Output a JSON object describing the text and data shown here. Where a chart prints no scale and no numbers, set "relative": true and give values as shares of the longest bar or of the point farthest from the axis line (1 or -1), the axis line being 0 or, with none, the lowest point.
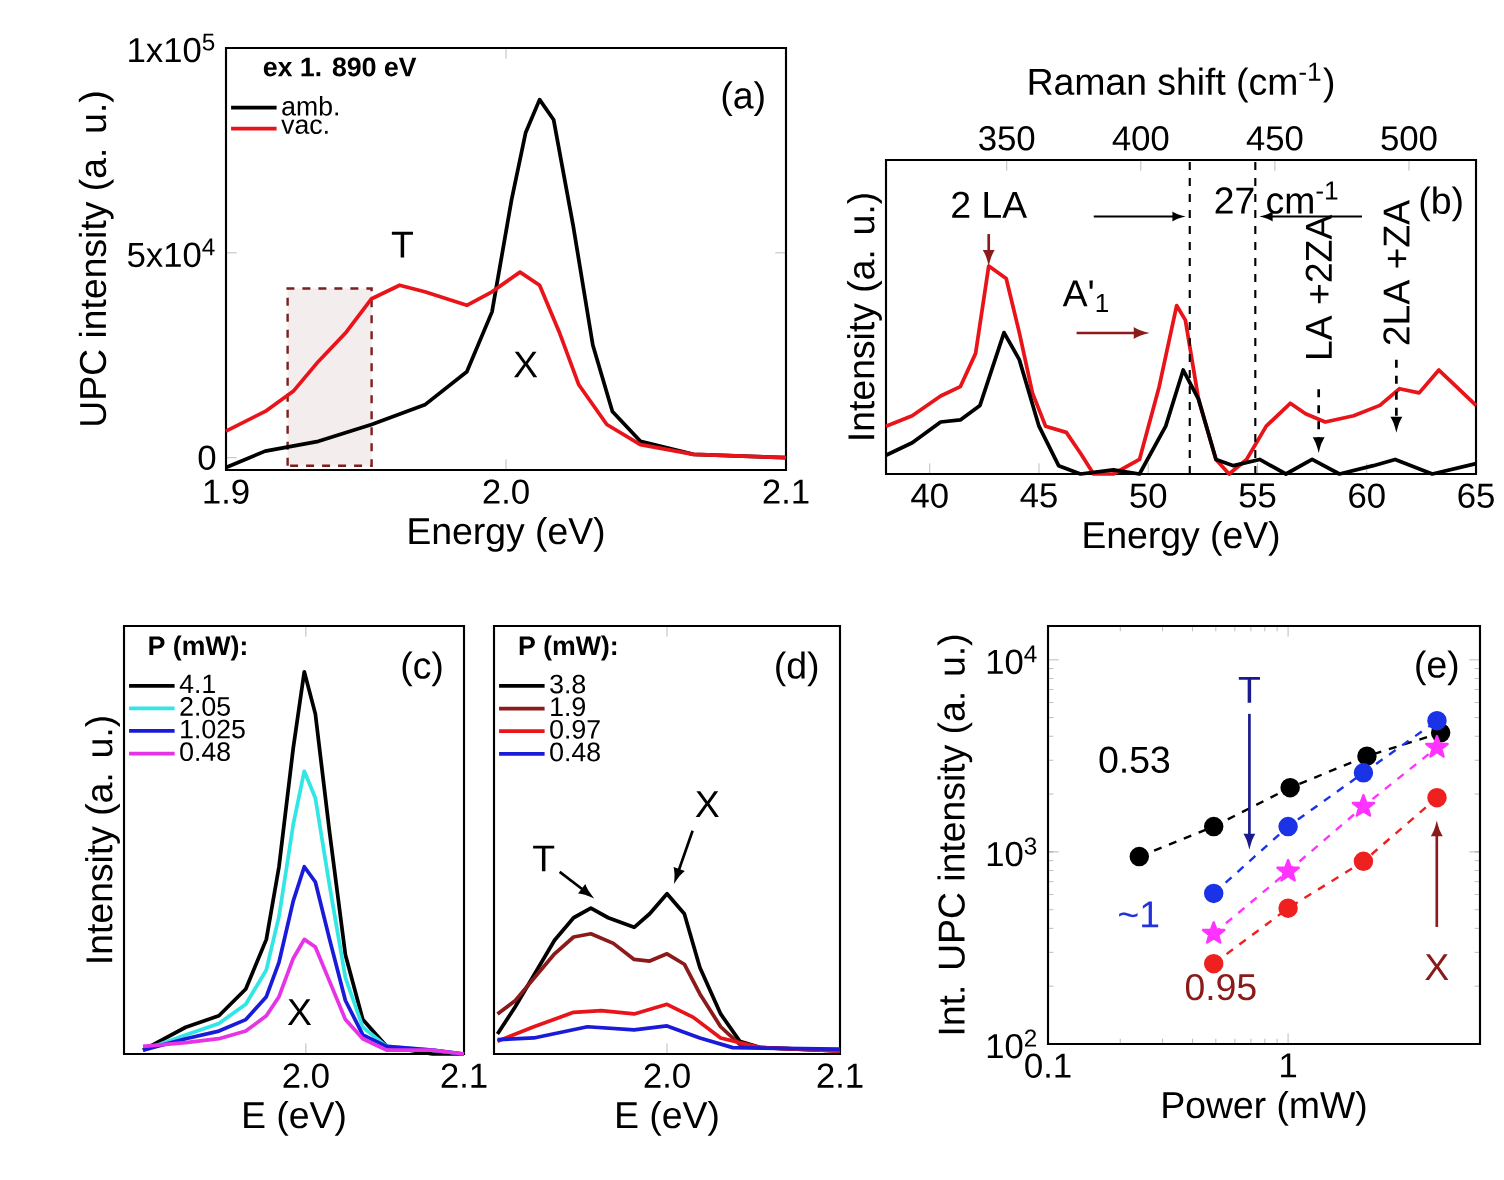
{
  "chart_data": [
    {
      "type": "line",
      "xlabel": "Energy (eV)",
      "ylabel": "UPC intensity (a. u.)",
      "legend": "top left",
      "legend_title": "ex 1. 890 eV",
      "xlim": [
        1.9,
        2.1
      ],
      "ylim": [
        -3000,
        100000
      ],
      "xticks": [
        {
          "value": 1.9,
          "label": "1.9"
        },
        {
          "value": 2.0,
          "label": "2.0"
        },
        {
          "value": 2.1,
          "label": "2.1"
        }
      ],
      "yticks": [
        0,
        {
          "value": 50000,
          "label": "5x10$^{4}$"
        },
        {
          "value": 100000,
          "label": "1x10$^{5}$"
        }
      ],
      "series": [
        {
          "name": "amb.",
          "color": "#000000",
          "x": [
            1.9,
            1.914,
            1.933,
            1.952,
            1.971,
            1.986,
            1.995,
            2.002,
            2.007,
            2.012,
            2.017,
            2.024,
            2.031,
            2.038,
            2.048,
            2.067,
            2.1
          ],
          "values": [
            -2400,
            1600,
            4000,
            8100,
            12900,
            21000,
            35600,
            63000,
            79300,
            87400,
            82500,
            56600,
            27500,
            11300,
            4000,
            800,
            0
          ]
        },
        {
          "name": "vac.",
          "color": "#e8141a",
          "x": [
            1.9,
            1.914,
            1.924,
            1.933,
            1.943,
            1.952,
            1.962,
            1.971,
            1.986,
            1.995,
            2.005,
            2.012,
            2.019,
            2.026,
            2.036,
            2.048,
            2.067,
            2.1
          ],
          "values": [
            6500,
            11300,
            16200,
            23500,
            30700,
            38800,
            42100,
            40500,
            37200,
            40500,
            45300,
            42100,
            30700,
            17800,
            8100,
            3200,
            800,
            0
          ]
        }
      ],
      "bands": [
        {
          "axis": "x",
          "from": 1.922,
          "to": 1.952,
          "color": "#7b1f1f"
        }
      ],
      "annotations": [
        "(a)",
        "T",
        "X"
      ]
    },
    {
      "type": "line",
      "relative": true,
      "xlabel": "Energy (eV)",
      "ylabel": "Intensity (a. u.)",
      "x2label": "Raman shift (cm$^{-1}$)",
      "xlim": [
        38,
        65
      ],
      "xticks": [
        40,
        45,
        50,
        55,
        60,
        65
      ],
      "x2lim": [
        305,
        525
      ],
      "x2ticks": [
        350,
        400,
        450,
        500
      ],
      "series": [
        {
          "color": "#e8141a",
          "x": [
            38,
            39.2,
            40.5,
            41.4,
            42.1,
            42.7,
            43.5,
            44.1,
            44.7,
            45.3,
            46.25,
            46.9,
            47.5,
            48.4,
            49.6,
            50.5,
            51.3,
            51.7,
            52.3,
            53.1,
            53.7,
            54.5,
            55.4,
            56.5,
            57.2,
            58.1,
            59.4,
            60.6,
            61.5,
            62.4,
            63.3,
            64.1,
            65
          ],
          "values": [
            0.23,
            0.28,
            0.375,
            0.42,
            0.58,
            1.0,
            0.94,
            0.68,
            0.39,
            0.23,
            0.2,
            0.1,
            0,
            0,
            0.07,
            0.42,
            0.81,
            0.74,
            0.36,
            0.07,
            0,
            0.07,
            0.23,
            0.34,
            0.29,
            0.25,
            0.28,
            0.33,
            0.41,
            0.39,
            0.5,
            0.42,
            0.33
          ]
        },
        {
          "color": "#000000",
          "x": [
            38,
            39.2,
            40.5,
            41.4,
            42.3,
            43.4,
            44.1,
            45,
            45.9,
            46.9,
            48.4,
            49.6,
            50.8,
            51.6,
            52.3,
            53.1,
            53.9,
            55.1,
            56.3,
            57.5,
            58.75,
            60.3,
            61.3,
            63,
            65
          ],
          "values": [
            0.09,
            0.15,
            0.25,
            0.26,
            0.33,
            0.68,
            0.55,
            0.23,
            0.04,
            0,
            0.02,
            0,
            0.23,
            0.5,
            0.36,
            0.07,
            0.04,
            0.07,
            0,
            0.07,
            0,
            0.04,
            0.07,
            0,
            0.05
          ]
        }
      ],
      "ref_lines": [
        {
          "axis": "x",
          "value": 51.9,
          "line_style": "dashed"
        },
        {
          "axis": "x",
          "value": 54.9,
          "line_style": "dashed"
        }
      ],
      "annotations": [
        "(b)",
        "27 cm$^{-1}$",
        {
          "text": "2 LA",
          "x": 42.7,
          "y": 1.0
        },
        "A'$_{1}$",
        {
          "text": "LA +2ZA",
          "x": 57.8,
          "y": 0.1
        },
        "2LA +ZA"
      ]
    },
    {
      "type": "line",
      "relative": true,
      "xlabel": "E (eV)",
      "ylabel": "Intensity (a. u.)",
      "legend": "top left",
      "legend_title": "P (mW):",
      "xlim": [
        1.885,
        2.1
      ],
      "xticks": [
        {
          "value": 2.0,
          "label": "2.0"
        },
        {
          "value": 2.1,
          "label": "2.1"
        }
      ],
      "x": [
        1.897,
        1.924,
        1.945,
        1.962,
        1.975,
        1.983,
        1.992,
        1.999,
        2.006,
        2.015,
        2.025,
        2.036,
        2.051,
        2.08,
        2.1
      ],
      "series": [
        {
          "name": "4.1",
          "color": "#000000",
          "values": [
            0.01,
            0.07,
            0.1,
            0.17,
            0.3,
            0.49,
            0.8,
            1.0,
            0.89,
            0.58,
            0.26,
            0.09,
            0.02,
            0,
            0
          ]
        },
        {
          "name": "2.05",
          "color": "#33e6e6",
          "values": [
            0.01,
            0.05,
            0.08,
            0.13,
            0.22,
            0.36,
            0.6,
            0.74,
            0.67,
            0.44,
            0.2,
            0.07,
            0.02,
            0.01,
            0
          ]
        },
        {
          "name": "1.025",
          "color": "#1a1ad9",
          "values": [
            0.01,
            0.04,
            0.06,
            0.09,
            0.15,
            0.24,
            0.4,
            0.49,
            0.45,
            0.3,
            0.14,
            0.05,
            0.02,
            0.01,
            0
          ]
        },
        {
          "name": "0.48",
          "color": "#e633e6",
          "values": [
            0.02,
            0.03,
            0.04,
            0.06,
            0.1,
            0.15,
            0.25,
            0.3,
            0.28,
            0.19,
            0.09,
            0.04,
            0.01,
            0.01,
            0
          ]
        }
      ],
      "annotations": [
        "(c)",
        "X"
      ]
    },
    {
      "type": "line",
      "relative": true,
      "xlabel": "E (eV)",
      "legend": "top left",
      "legend_title": "P (mW):",
      "xlim": [
        1.9,
        2.1
      ],
      "xticks": [
        {
          "value": 2.0,
          "label": "2.0"
        },
        {
          "value": 2.1,
          "label": "2.1"
        }
      ],
      "series": [
        {
          "name": "3.8",
          "color": "#000000",
          "x": [
            1.902,
            1.912,
            1.935,
            1.946,
            1.956,
            1.966,
            1.981,
            1.99,
            2.0,
            2.01,
            2.019,
            2.031,
            2.042,
            2.054,
            2.1
          ],
          "values": [
            0.125,
            0.29,
            0.71,
            0.85,
            0.91,
            0.85,
            0.79,
            0.875,
            1.0,
            0.875,
            0.54,
            0.25,
            0.08,
            0.04,
            0.02
          ]
        },
        {
          "name": "1.9",
          "color": "#8b1a1a",
          "x": [
            1.902,
            1.912,
            1.935,
            1.946,
            1.956,
            1.969,
            1.981,
            1.99,
            2.0,
            2.01,
            2.019,
            2.031,
            2.042,
            2.054,
            2.1
          ],
          "values": [
            0.25,
            0.33,
            0.625,
            0.73,
            0.75,
            0.69,
            0.59,
            0.58,
            0.625,
            0.56,
            0.375,
            0.17,
            0.06,
            0.04,
            0.02
          ]
        },
        {
          "name": "0.97",
          "color": "#e8141a",
          "x": [
            1.902,
            1.923,
            1.946,
            1.962,
            1.981,
            2.0,
            2.015,
            2.031,
            2.054,
            2.1
          ],
          "values": [
            0.08,
            0.17,
            0.26,
            0.27,
            0.25,
            0.31,
            0.23,
            0.1,
            0.04,
            0.02
          ]
        },
        {
          "name": "0.48",
          "color": "#1a1ad9",
          "x": [
            1.902,
            1.923,
            1.954,
            1.981,
            2.0,
            2.019,
            2.038,
            2.1
          ],
          "values": [
            0.09,
            0.1,
            0.17,
            0.15,
            0.175,
            0.1,
            0.04,
            0.03
          ]
        }
      ],
      "annotations": [
        "(d)",
        {
          "text": "T",
          "x": 1.958,
          "y": 0.97
        },
        {
          "text": "X",
          "x": 2.004,
          "y": 1.06
        }
      ]
    },
    {
      "type": "line",
      "log": "xy",
      "marker": "circle",
      "line_style": "dashed",
      "xlabel": "Power (mW)",
      "ylabel": "Int. UPC intensity (a. u.)",
      "xlim": [
        0.1,
        6.3
      ],
      "ylim": [
        100,
        15000
      ],
      "xticks": [
        0.1,
        1
      ],
      "yticks": [
        {
          "value": 100,
          "label": "10$^{2}$"
        },
        {
          "value": 1000,
          "label": "10$^{3}$"
        },
        {
          "value": 10000,
          "label": "10$^{4}$"
        }
      ],
      "series": [
        {
          "color": "#000000",
          "x": [
            0.24,
            0.49,
            1.02,
            2.13,
            4.32
          ],
          "values": [
            946,
            1355,
            2160,
            3150,
            4170
          ]
        },
        {
          "color": "#1a33e6",
          "x": [
            0.49,
            1.0,
            2.06,
            4.17
          ],
          "values": [
            608,
            1355,
            2580,
            4820
          ]
        },
        {
          "color": "#ff33ff",
          "marker": "star",
          "x": [
            0.49,
            1.0,
            2.06,
            4.17
          ],
          "values": [
            376,
            793,
            1725,
            3500
          ]
        },
        {
          "color": "#ee2020",
          "x": [
            0.49,
            1.0,
            2.06,
            4.17
          ],
          "values": [
            262,
            509,
            893,
            1915
          ]
        }
      ],
      "annotations": [
        "(e)",
        "0.53",
        "~1",
        "0.95",
        {
          "text": "T",
          "x": 0.69,
          "y": 1025
        },
        "X"
      ]
    }
  ]
}
